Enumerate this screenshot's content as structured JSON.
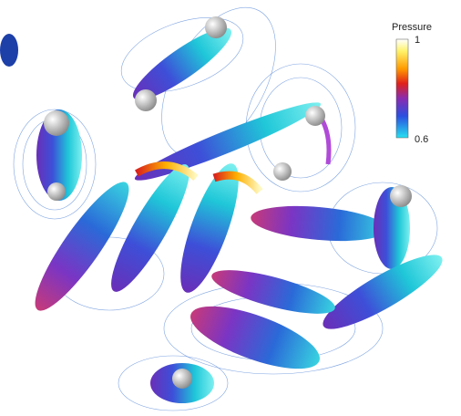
{
  "colorbar": {
    "title": "Pressure",
    "max": 1,
    "min": 0.6
  }
}
